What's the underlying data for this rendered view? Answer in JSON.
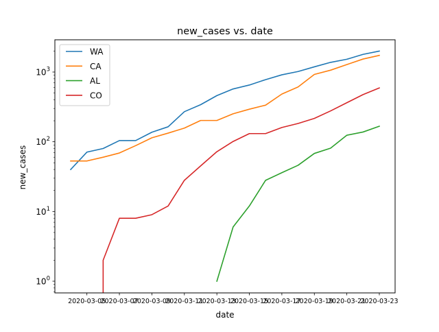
{
  "chart_data": {
    "type": "line",
    "title": "new_cases vs. date",
    "xlabel": "date",
    "ylabel": "new_cases",
    "yscale": "log",
    "ylim": [
      0.68,
      2900
    ],
    "y_tick_labels": [
      {
        "value": 1,
        "base": "10",
        "exp": "0"
      },
      {
        "value": 10,
        "base": "10",
        "exp": "1"
      },
      {
        "value": 100,
        "base": "10",
        "exp": "2"
      },
      {
        "value": 1000,
        "base": "10",
        "exp": "3"
      }
    ],
    "x": [
      "2020-03-04",
      "2020-03-05",
      "2020-03-06",
      "2020-03-07",
      "2020-03-08",
      "2020-03-09",
      "2020-03-10",
      "2020-03-11",
      "2020-03-12",
      "2020-03-13",
      "2020-03-14",
      "2020-03-15",
      "2020-03-16",
      "2020-03-17",
      "2020-03-18",
      "2020-03-19",
      "2020-03-20",
      "2020-03-21",
      "2020-03-22",
      "2020-03-23"
    ],
    "x_tick_labels": [
      "2020-03-05",
      "2020-03-07",
      "2020-03-09",
      "2020-03-11",
      "2020-03-13",
      "2020-03-15",
      "2020-03-17",
      "2020-03-19",
      "2020-03-21",
      "2020-03-23"
    ],
    "legend_position": "top-left",
    "grid": false,
    "series": [
      {
        "name": "WA",
        "color": "#1f77b4",
        "values": [
          40,
          71,
          80,
          104,
          104,
          137,
          164,
          270,
          340,
          459,
          572,
          651,
          778,
          912,
          1017,
          1187,
          1376,
          1524,
          1793,
          1997
        ]
      },
      {
        "name": "CA",
        "color": "#ff7f0e",
        "values": [
          53,
          53,
          60,
          69,
          88,
          114,
          133,
          157,
          202,
          202,
          252,
          293,
          335,
          483,
          611,
          924,
          1063,
          1279,
          1536,
          1733
        ]
      },
      {
        "name": "AL",
        "color": "#2ca02c",
        "values": [
          null,
          null,
          null,
          null,
          null,
          null,
          null,
          null,
          null,
          1,
          6,
          12,
          28,
          36,
          46,
          68,
          81,
          124,
          138,
          167
        ]
      },
      {
        "name": "CO",
        "color": "#d62728",
        "values": [
          null,
          null,
          2,
          8,
          8,
          9,
          12,
          28,
          45,
          72,
          101,
          131,
          131,
          160,
          183,
          216,
          277,
          363,
          475,
          591
        ]
      }
    ]
  }
}
